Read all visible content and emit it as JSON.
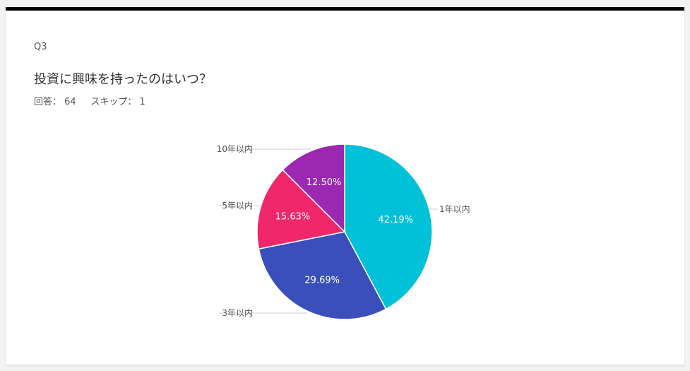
{
  "question": {
    "number": "Q3",
    "title": "投資に興味を持ったのはいつ？",
    "answered_label": "回答：",
    "answered_count": "64",
    "skipped_label": "スキップ：",
    "skipped_count": "1"
  },
  "chart_data": {
    "type": "pie",
    "categories": [
      "1年以内",
      "3年以内",
      "5年以内",
      "10年以内"
    ],
    "values": [
      42.19,
      29.69,
      15.63,
      12.5
    ],
    "value_labels": [
      "42.19%",
      "29.69%",
      "15.63%",
      "12.50%"
    ],
    "colors": [
      "#00c1d8",
      "#3b4fbb",
      "#f0276a",
      "#9c27b0"
    ],
    "title": "",
    "start": "12 o'clock",
    "direction": "clockwise"
  }
}
